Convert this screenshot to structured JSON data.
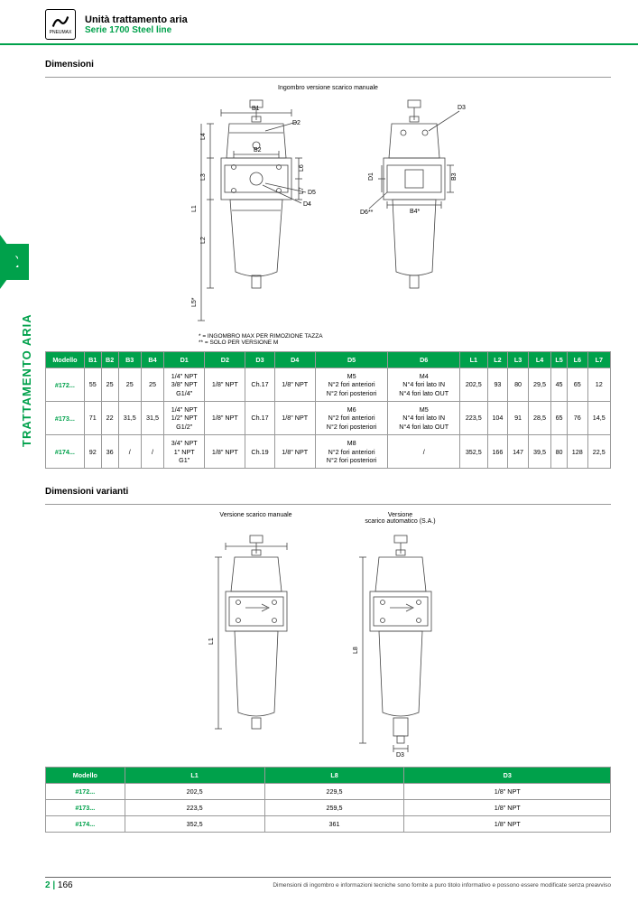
{
  "header": {
    "title": "Unità trattamento aria",
    "subtitle": "Serie 1700 Steel line",
    "brand": "PNEUMAX"
  },
  "sideTab": {
    "chapter": "2",
    "label": "TRATTAMENTO ARIA"
  },
  "sections": {
    "dimensioni": "Dimensioni",
    "dimensioni_varianti": "Dimensioni varianti"
  },
  "diagram1": {
    "caption": "Ingombro versione scarico manuale",
    "labels": [
      "B1",
      "B2",
      "D2",
      "L3",
      "L4",
      "L1",
      "L2",
      "L5*",
      "L6",
      "L7",
      "D4",
      "D5",
      "D1",
      "B3",
      "B4*",
      "D3",
      "D6**"
    ],
    "footnote1": "* = INGOMBRO MAX PER RIMOZIONE TAZZA",
    "footnote2": "** = SOLO PER VERSIONE M"
  },
  "table1": {
    "columns": [
      "Modello",
      "B1",
      "B2",
      "B3",
      "B4",
      "D1",
      "D2",
      "D3",
      "D4",
      "D5",
      "D6",
      "L1",
      "L2",
      "L3",
      "L4",
      "L5",
      "L6",
      "L7"
    ],
    "rows": [
      {
        "model": "#172...",
        "cells": [
          "55",
          "25",
          "25",
          "25",
          "1/4\" NPT\n3/8\" NPT\nG1/4\"",
          "1/8\" NPT",
          "Ch.17",
          "1/8\" NPT",
          "M5\nN°2 fori anteriori\nN°2 fori posteriori",
          "M4\nN°4 fori lato IN\nN°4 fori lato OUT",
          "202,5",
          "93",
          "80",
          "29,5",
          "45",
          "65",
          "12"
        ]
      },
      {
        "model": "#173...",
        "cells": [
          "71",
          "22",
          "31,5",
          "31,5",
          "1/4\" NPT\n1/2\" NPT\nG1/2\"",
          "1/8\" NPT",
          "Ch.17",
          "1/8\" NPT",
          "M6\nN°2 fori anteriori\nN°2 fori posteriori",
          "M5\nN°4 fori lato IN\nN°4 fori lato OUT",
          "223,5",
          "104",
          "91",
          "28,5",
          "65",
          "76",
          "14,5"
        ]
      },
      {
        "model": "#174...",
        "cells": [
          "92",
          "36",
          "/",
          "/",
          "3/4\" NPT\n1\" NPT\nG1\"",
          "1/8\" NPT",
          "Ch.19",
          "1/8\" NPT",
          "M8\nN°2 fori anteriori\nN°2 fori posteriori",
          "/",
          "352,5",
          "166",
          "147",
          "39,5",
          "80",
          "128",
          "22,5"
        ]
      }
    ]
  },
  "diagram2": {
    "label_left": "Versione scarico manuale",
    "label_right": "Versione\nscarico automatico (S.A.)",
    "dims": [
      "L1",
      "L8",
      "D3"
    ]
  },
  "table2": {
    "columns": [
      "Modello",
      "L1",
      "L8",
      "D3"
    ],
    "rows": [
      {
        "model": "#172...",
        "cells": [
          "202,5",
          "229,5",
          "1/8\" NPT"
        ]
      },
      {
        "model": "#173...",
        "cells": [
          "223,5",
          "259,5",
          "1/8\" NPT"
        ]
      },
      {
        "model": "#174...",
        "cells": [
          "352,5",
          "361",
          "1/8\" NPT"
        ]
      }
    ]
  },
  "footer": {
    "chapter": "2",
    "sep": " | ",
    "page": "166",
    "disclaimer": "Dimensioni di ingombro e informazioni tecniche sono fornite a puro titolo informativo e possono essere modificate senza preavviso"
  },
  "colors": {
    "brand": "#00a14b",
    "line": "#444"
  }
}
